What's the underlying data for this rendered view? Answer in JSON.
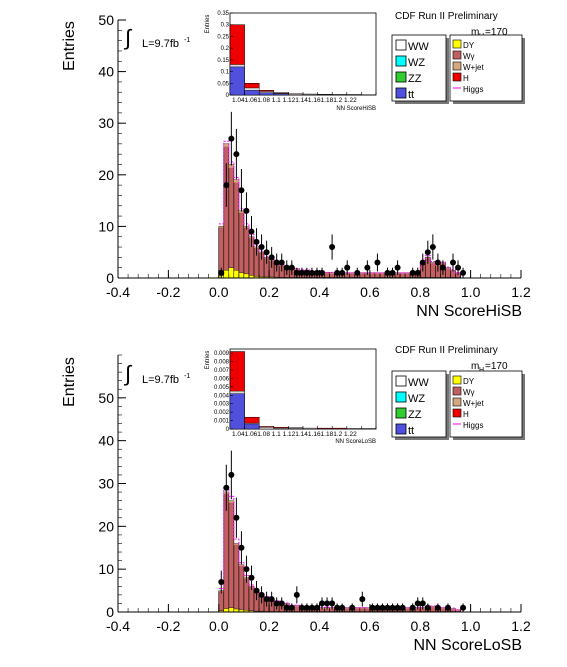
{
  "panels": [
    {
      "preliminary": "CDF Run II Preliminary",
      "mass": "m",
      "mass_sub": "H",
      "mass_val": "=170",
      "lumi": "L=9.7fb",
      "lumi_sup": "-1",
      "integral": "∫",
      "ylabel": "Entries",
      "xlabel": "NN ScoreHiSB",
      "inset_ylabel": "Entries",
      "inset_xlabel": "NN ScoreHiSB",
      "legend_left": [
        "WW",
        "WZ",
        "ZZ",
        "tt"
      ],
      "legend_right": [
        "DY",
        "Wγ",
        "W+jet",
        "H",
        "Higgs"
      ]
    },
    {
      "preliminary": "CDF Run II Preliminary",
      "mass": "m",
      "mass_sub": "H",
      "mass_val": "=170",
      "lumi": "L=9.7fb",
      "lumi_sup": "-1",
      "integral": "∫",
      "ylabel": "Entries",
      "xlabel": "NN ScoreLoSB",
      "inset_ylabel": "Entries",
      "inset_xlabel": "NN ScoreLoSB",
      "legend_left": [
        "WW",
        "WZ",
        "ZZ",
        "tt"
      ],
      "legend_right": [
        "DY",
        "Wγ",
        "W+jet",
        "H",
        "Higgs"
      ]
    }
  ],
  "colors": {
    "WW": "#ffffff",
    "WZ": "#00ffff",
    "ZZ": "#33cc33",
    "tt": "#5050dd",
    "DY": "#ffff00",
    "Wgamma": "#c06060",
    "Wjet": "#d2a77e",
    "H": "#ee0000",
    "Higgs": "#ff00ff",
    "data": "#000000"
  },
  "chart_data": [
    {
      "type": "bar",
      "xlim": [
        -0.4,
        1.2
      ],
      "ylim": [
        0,
        50
      ],
      "xticks": [
        "-0.4",
        "-0.2",
        "0.0",
        "0.2",
        "0.4",
        "0.6",
        "0.8",
        "1.0",
        "1.2"
      ],
      "yticks": [
        "0",
        "10",
        "20",
        "30",
        "40",
        "50"
      ],
      "bin_edges": [
        0.0,
        0.02,
        0.04,
        0.06,
        0.08,
        0.1,
        0.12,
        0.14,
        0.16,
        0.18,
        0.2,
        0.22,
        0.24,
        0.26,
        0.28,
        0.3,
        0.32,
        0.34,
        0.36,
        0.38,
        0.4,
        0.42,
        0.44,
        0.46,
        0.48,
        0.5,
        0.52,
        0.54,
        0.56,
        0.58,
        0.6,
        0.62,
        0.64,
        0.66,
        0.68,
        0.7,
        0.72,
        0.74,
        0.76,
        0.78,
        0.8,
        0.82,
        0.84,
        0.86,
        0.88,
        0.9,
        0.92,
        0.94,
        0.96,
        0.98,
        1.0
      ],
      "stack_total": [
        10,
        26,
        22,
        19,
        13,
        10,
        8,
        6,
        5,
        4,
        3.5,
        3,
        2.5,
        2,
        2,
        1.8,
        1.5,
        1.5,
        1.3,
        1.2,
        1.2,
        1.1,
        1,
        1,
        1,
        1,
        1,
        1,
        1,
        1,
        1,
        1,
        1,
        1,
        1,
        1,
        1,
        1,
        1,
        1,
        3,
        4,
        3,
        2.5,
        3,
        2,
        1.5,
        1,
        0,
        0
      ],
      "dy": [
        0.5,
        1.5,
        2,
        1.5,
        1,
        0.8,
        0.5,
        0.3,
        0.2,
        0.2,
        0.2,
        0.1,
        0.1,
        0.1,
        0.1,
        0.1,
        0.1,
        0.1,
        0.1,
        0.1,
        0.1,
        0.1,
        0.1,
        0.1,
        0.1,
        0.1,
        0.1,
        0.1,
        0.1,
        0.1,
        0.1,
        0.1,
        0.1,
        0.1,
        0.1,
        0.1,
        0.1,
        0.1,
        0.1,
        0.1,
        0.1,
        0.1,
        0.1,
        0.1,
        0.1,
        0.1,
        0.1,
        0.1,
        0,
        0
      ],
      "higgs": [
        10.5,
        26.5,
        22.5,
        19.5,
        13.5,
        10.5,
        8.4,
        6.3,
        5.2,
        4.2,
        3.6,
        3.1,
        2.6,
        2.1,
        2.1,
        1.8,
        1.6,
        1.6,
        1.4,
        1.2,
        1.2,
        1.1,
        1.1,
        1.1,
        1,
        1,
        1,
        1,
        1,
        1,
        1,
        1,
        1,
        1,
        1,
        1,
        1,
        1,
        1,
        1.1,
        3.2,
        4.3,
        3.2,
        2.6,
        3.1,
        2.1,
        1.6,
        1,
        0,
        0
      ],
      "data_x": [
        0.0,
        0.02,
        0.04,
        0.06,
        0.08,
        0.1,
        0.12,
        0.14,
        0.16,
        0.18,
        0.2,
        0.22,
        0.24,
        0.26,
        0.28,
        0.3,
        0.32,
        0.34,
        0.36,
        0.38,
        0.4,
        0.44,
        0.46,
        0.48,
        0.5,
        0.54,
        0.58,
        0.62,
        0.66,
        0.68,
        0.7,
        0.76,
        0.78,
        0.8,
        0.82,
        0.84,
        0.86,
        0.88,
        0.92,
        0.94,
        0.96
      ],
      "data_y": [
        1,
        18,
        27,
        24,
        17,
        13,
        9,
        7,
        6,
        5,
        4,
        3,
        3,
        2,
        2,
        1,
        1,
        1,
        1,
        1,
        1,
        6,
        1,
        1,
        2,
        1,
        2,
        3,
        1,
        1,
        2,
        1,
        1,
        3,
        5,
        6,
        3,
        2,
        3,
        2,
        1
      ],
      "inset": {
        "type": "bar",
        "ylim": [
          0,
          0.35
        ],
        "yticks": [
          "0",
          "0.05",
          "0.1",
          "0.15",
          "0.2",
          "0.25",
          "0.3",
          "0.35"
        ],
        "xticks": [
          "1.04",
          "1.06",
          "1.08",
          "1.1",
          "1.12",
          "1.14",
          "1.16",
          "1.18",
          "1.2",
          "1.22"
        ],
        "xtick_text": "1.041.061.08 1.1 1.121.141.161.181.2 1.22",
        "bin_edges": [
          1.02,
          1.04,
          1.06,
          1.08,
          1.1,
          1.12,
          1.14,
          1.16,
          1.18,
          1.2,
          1.22
        ],
        "h": [
          0.3,
          0.05,
          0.02,
          0.01,
          0.005,
          0.004,
          0.003,
          0.002,
          0.002,
          0.001
        ],
        "tt": [
          0.12,
          0.02,
          0.01,
          0.005,
          0,
          0,
          0,
          0,
          0,
          0
        ],
        "ww": [
          0.13,
          0.03,
          0.015,
          0.007,
          0.004,
          0.003,
          0.002,
          0.002,
          0.001,
          0.001
        ]
      }
    },
    {
      "type": "bar",
      "xlim": [
        -0.4,
        1.2
      ],
      "ylim": [
        0,
        60
      ],
      "xticks": [
        "-0.4",
        "-0.2",
        "0.0",
        "0.2",
        "0.4",
        "0.6",
        "0.8",
        "1.0",
        "1.2"
      ],
      "yticks": [
        "0",
        "10",
        "20",
        "30",
        "40",
        "50"
      ],
      "bin_edges": [
        0.0,
        0.02,
        0.04,
        0.06,
        0.08,
        0.1,
        0.12,
        0.14,
        0.16,
        0.18,
        0.2,
        0.22,
        0.24,
        0.26,
        0.28,
        0.3,
        0.32,
        0.34,
        0.36,
        0.38,
        0.4,
        0.42,
        0.44,
        0.46,
        0.48,
        0.5,
        0.52,
        0.54,
        0.56,
        0.58,
        0.6,
        0.62,
        0.64,
        0.66,
        0.68,
        0.7,
        0.72,
        0.74,
        0.76,
        0.78,
        0.8,
        0.82,
        0.84,
        0.86,
        0.88,
        0.9,
        0.92,
        0.94,
        0.96,
        0.98,
        1.0
      ],
      "stack_total": [
        5,
        28,
        26,
        16,
        11,
        8,
        6,
        5,
        4,
        3.5,
        3,
        2.5,
        2,
        2,
        1.5,
        1.5,
        1.3,
        1.2,
        1.1,
        1,
        1,
        1,
        1,
        1,
        1,
        1,
        1,
        1,
        1,
        1,
        1,
        1,
        1,
        1,
        1,
        1,
        1,
        1,
        1,
        1,
        1,
        1.2,
        1.3,
        1,
        1,
        1,
        0.8,
        0.5,
        0,
        0
      ],
      "dy": [
        0.3,
        0.8,
        1,
        0.7,
        0.5,
        0.4,
        0.3,
        0.2,
        0.2,
        0.1,
        0.1,
        0.1,
        0.1,
        0.1,
        0.1,
        0.1,
        0.1,
        0.1,
        0.1,
        0.1,
        0.1,
        0.1,
        0.1,
        0.1,
        0.1,
        0.1,
        0.1,
        0.1,
        0.1,
        0.1,
        0.1,
        0.1,
        0.1,
        0.1,
        0.1,
        0.1,
        0.1,
        0.1,
        0.1,
        0.1,
        0.1,
        0.1,
        0.1,
        0.1,
        0.1,
        0.1,
        0.1,
        0.1,
        0,
        0
      ],
      "higgs": [
        5.5,
        29,
        27,
        17,
        11.5,
        8.5,
        6.3,
        5.2,
        4.2,
        3.6,
        3.1,
        2.6,
        2.1,
        2.1,
        1.6,
        1.6,
        1.4,
        1.3,
        1.2,
        1.1,
        1.1,
        1.1,
        1.1,
        1,
        1,
        1,
        1,
        1,
        1,
        1,
        1,
        1,
        1,
        1,
        1,
        1,
        1,
        1,
        1,
        1,
        1,
        1.3,
        1.4,
        1.1,
        1,
        1,
        0.9,
        0.5,
        0,
        0
      ],
      "data_x": [
        0.0,
        0.02,
        0.04,
        0.06,
        0.08,
        0.1,
        0.12,
        0.14,
        0.16,
        0.18,
        0.2,
        0.22,
        0.24,
        0.26,
        0.28,
        0.3,
        0.32,
        0.34,
        0.36,
        0.38,
        0.4,
        0.42,
        0.44,
        0.46,
        0.48,
        0.52,
        0.56,
        0.6,
        0.62,
        0.64,
        0.66,
        0.68,
        0.7,
        0.72,
        0.76,
        0.78,
        0.8,
        0.82,
        0.86,
        0.9,
        0.96
      ],
      "data_y": [
        7,
        29,
        32,
        22,
        15,
        10,
        8,
        5,
        4,
        3,
        3,
        2,
        2,
        1,
        1,
        4,
        1,
        1,
        1,
        1,
        2,
        2,
        2,
        1,
        1,
        1,
        3,
        1,
        1,
        1,
        1,
        1,
        1,
        1,
        1,
        2,
        2,
        1,
        1,
        1,
        1
      ],
      "inset": {
        "type": "bar",
        "ylim": [
          0,
          0.0095
        ],
        "yticks": [
          "0",
          "0.001",
          "0.002",
          "0.003",
          "0.004",
          "0.005",
          "0.006",
          "0.007",
          "0.008",
          "0.009"
        ],
        "xticks": [
          "1.04",
          "1.06",
          "1.08",
          "1.1",
          "1.12",
          "1.14",
          "1.16",
          "1.18",
          "1.2",
          "1.22"
        ],
        "xtick_text": "1.041.061.08 1.1 1.121.141.161.181.2 1.22",
        "bin_edges": [
          1.02,
          1.04,
          1.06,
          1.08,
          1.1,
          1.12,
          1.14,
          1.16,
          1.18,
          1.2,
          1.22
        ],
        "h": [
          0.0092,
          0.0014,
          0.0003,
          0.0002,
          0.00015,
          0.0001,
          0.0001,
          0.0001,
          5e-05,
          5e-05
        ],
        "tt": [
          0.0042,
          0.0006,
          0,
          0,
          0,
          0,
          0,
          0,
          0,
          0
        ],
        "ww": [
          0.0045,
          0.0007,
          0.0002,
          0.0001,
          0.0001,
          0.0001,
          0,
          0,
          0,
          0
        ]
      }
    }
  ]
}
